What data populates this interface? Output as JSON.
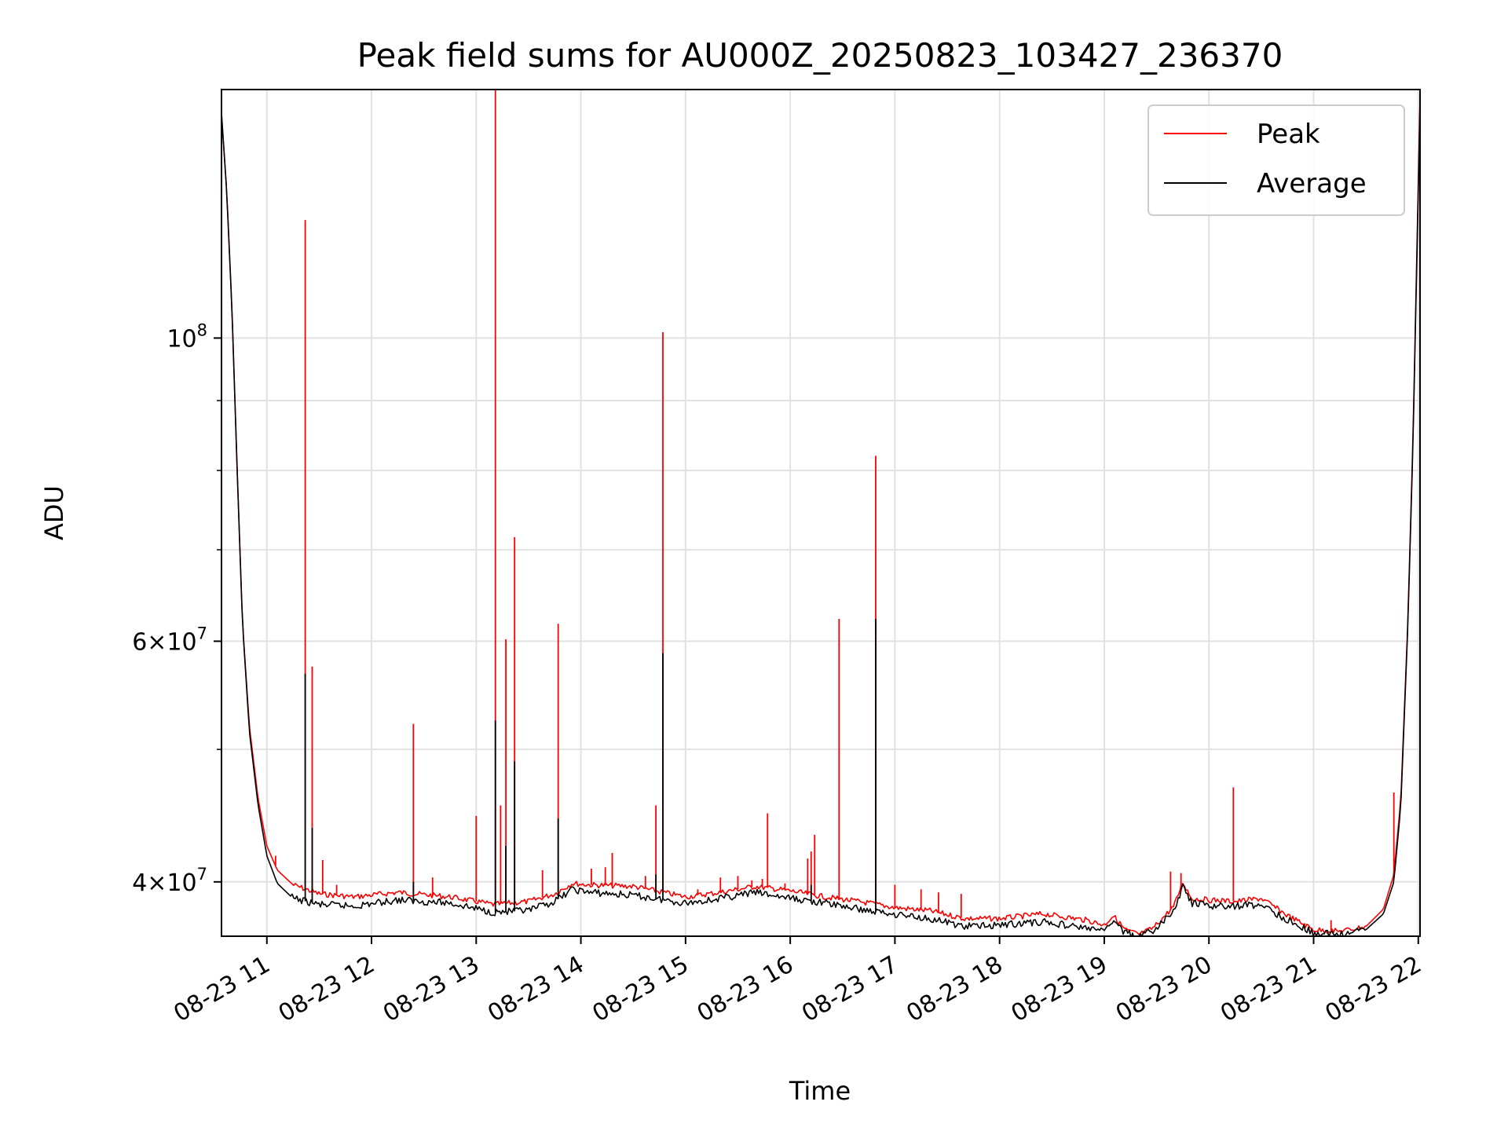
{
  "chart_data": {
    "type": "line",
    "title": "Peak field sums for AU000Z_20250823_103427_236370",
    "xlabel": "Time",
    "ylabel": "ADU",
    "y_scale": "log",
    "grid": true,
    "legend_position": "top-right",
    "x_range": [
      "2025-08-23 10:34",
      "2025-08-23 22:01"
    ],
    "ylim": [
      36500000,
      152000000
    ],
    "x_tick_labels": [
      "08-23 11",
      "08-23 12",
      "08-23 13",
      "08-23 14",
      "08-23 15",
      "08-23 16",
      "08-23 17",
      "08-23 18",
      "08-23 19",
      "08-23 20",
      "08-23 21",
      "08-23 22"
    ],
    "x_tick_times": [
      "2025-08-23 11:00",
      "2025-08-23 12:00",
      "2025-08-23 13:00",
      "2025-08-23 14:00",
      "2025-08-23 15:00",
      "2025-08-23 16:00",
      "2025-08-23 17:00",
      "2025-08-23 18:00",
      "2025-08-23 19:00",
      "2025-08-23 20:00",
      "2025-08-23 21:00",
      "2025-08-23 22:00"
    ],
    "y_major_ticks": [
      {
        "value": 40000000,
        "mantissa": "4",
        "exponent": "7"
      },
      {
        "value": 60000000,
        "mantissa": "6",
        "exponent": "7"
      },
      {
        "value": 100000000,
        "mantissa": "",
        "exponent": "8"
      }
    ],
    "y_minor_ticks": [
      50000000,
      70000000,
      80000000,
      90000000
    ],
    "series": [
      {
        "name": "Peak",
        "color": "#ff0000",
        "baseline": [
          [
            "2025-08-23 10:34",
            146000000
          ],
          [
            "2025-08-23 10:37",
            128000000
          ],
          [
            "2025-08-23 10:40",
            105000000
          ],
          [
            "2025-08-23 10:43",
            80000000
          ],
          [
            "2025-08-23 10:46",
            62000000
          ],
          [
            "2025-08-23 10:50",
            52000000
          ],
          [
            "2025-08-23 10:55",
            46000000
          ],
          [
            "2025-08-23 11:00",
            42500000
          ],
          [
            "2025-08-23 11:06",
            40800000
          ],
          [
            "2025-08-23 11:15",
            39800000
          ],
          [
            "2025-08-23 11:30",
            39200000
          ],
          [
            "2025-08-23 11:50",
            39000000
          ],
          [
            "2025-08-23 12:15",
            39300000
          ],
          [
            "2025-08-23 12:45",
            39000000
          ],
          [
            "2025-08-23 13:10",
            38500000
          ],
          [
            "2025-08-23 13:30",
            38700000
          ],
          [
            "2025-08-23 13:45",
            39200000
          ],
          [
            "2025-08-23 13:55",
            39900000
          ],
          [
            "2025-08-23 14:05",
            39800000
          ],
          [
            "2025-08-23 14:30",
            39700000
          ],
          [
            "2025-08-23 15:00",
            39000000
          ],
          [
            "2025-08-23 15:20",
            39300000
          ],
          [
            "2025-08-23 15:40",
            39700000
          ],
          [
            "2025-08-23 16:00",
            39400000
          ],
          [
            "2025-08-23 16:20",
            39000000
          ],
          [
            "2025-08-23 16:45",
            38600000
          ],
          [
            "2025-08-23 17:00",
            38300000
          ],
          [
            "2025-08-23 17:20",
            38100000
          ],
          [
            "2025-08-23 17:40",
            37600000
          ],
          [
            "2025-08-23 18:00",
            37600000
          ],
          [
            "2025-08-23 18:25",
            37900000
          ],
          [
            "2025-08-23 18:50",
            37500000
          ],
          [
            "2025-08-23 19:00",
            37200000
          ],
          [
            "2025-08-23 19:05",
            37800000
          ],
          [
            "2025-08-23 19:12",
            36900000
          ],
          [
            "2025-08-23 19:20",
            36600000
          ],
          [
            "2025-08-23 19:28",
            37000000
          ],
          [
            "2025-08-23 19:40",
            38400000
          ],
          [
            "2025-08-23 19:45",
            40000000
          ],
          [
            "2025-08-23 19:50",
            38900000
          ],
          [
            "2025-08-23 20:00",
            38800000
          ],
          [
            "2025-08-23 20:15",
            38700000
          ],
          [
            "2025-08-23 20:30",
            38900000
          ],
          [
            "2025-08-23 20:45",
            37800000
          ],
          [
            "2025-08-23 21:00",
            36900000
          ],
          [
            "2025-08-23 21:15",
            36800000
          ],
          [
            "2025-08-23 21:30",
            37100000
          ],
          [
            "2025-08-23 21:40",
            38200000
          ],
          [
            "2025-08-23 21:46",
            40500000
          ],
          [
            "2025-08-23 21:50",
            46000000
          ],
          [
            "2025-08-23 21:54",
            62000000
          ],
          [
            "2025-08-23 21:57",
            85000000
          ],
          [
            "2025-08-23 22:00",
            130000000
          ],
          [
            "2025-08-23 22:01",
            150000000
          ]
        ],
        "spikes": [
          [
            "2025-08-23 11:05",
            41800000
          ],
          [
            "2025-08-23 11:22",
            122000000
          ],
          [
            "2025-08-23 11:26",
            57500000
          ],
          [
            "2025-08-23 11:32",
            41500000
          ],
          [
            "2025-08-23 11:40",
            39800000
          ],
          [
            "2025-08-23 12:24",
            52200000
          ],
          [
            "2025-08-23 12:35",
            40300000
          ],
          [
            "2025-08-23 13:00",
            44700000
          ],
          [
            "2025-08-23 13:11",
            152000000
          ],
          [
            "2025-08-23 13:14",
            45500000
          ],
          [
            "2025-08-23 13:17",
            60200000
          ],
          [
            "2025-08-23 13:22",
            71500000
          ],
          [
            "2025-08-23 13:38",
            40800000
          ],
          [
            "2025-08-23 13:47",
            61800000
          ],
          [
            "2025-08-23 14:06",
            40900000
          ],
          [
            "2025-08-23 14:14",
            41000000
          ],
          [
            "2025-08-23 14:18",
            42000000
          ],
          [
            "2025-08-23 14:37",
            40400000
          ],
          [
            "2025-08-23 14:43",
            45500000
          ],
          [
            "2025-08-23 14:47",
            101000000
          ],
          [
            "2025-08-23 15:07",
            39500000
          ],
          [
            "2025-08-23 15:20",
            40300000
          ],
          [
            "2025-08-23 15:30",
            40400000
          ],
          [
            "2025-08-23 15:38",
            40100000
          ],
          [
            "2025-08-23 15:44",
            40200000
          ],
          [
            "2025-08-23 15:47",
            44900000
          ],
          [
            "2025-08-23 15:57",
            39900000
          ],
          [
            "2025-08-23 16:10",
            41600000
          ],
          [
            "2025-08-23 16:12",
            42100000
          ],
          [
            "2025-08-23 16:14",
            43300000
          ],
          [
            "2025-08-23 16:28",
            62300000
          ],
          [
            "2025-08-23 16:49",
            82000000
          ],
          [
            "2025-08-23 17:00",
            39800000
          ],
          [
            "2025-08-23 17:15",
            39500000
          ],
          [
            "2025-08-23 17:25",
            39300000
          ],
          [
            "2025-08-23 17:38",
            39200000
          ],
          [
            "2025-08-23 19:38",
            40700000
          ],
          [
            "2025-08-23 19:44",
            40600000
          ],
          [
            "2025-08-23 20:14",
            46900000
          ],
          [
            "2025-08-23 20:55",
            37300000
          ],
          [
            "2025-08-23 21:10",
            37500000
          ],
          [
            "2025-08-23 21:46",
            46500000
          ]
        ]
      },
      {
        "name": "Average",
        "color": "#000000",
        "baseline": [
          [
            "2025-08-23 10:34",
            146000000
          ],
          [
            "2025-08-23 10:37",
            128000000
          ],
          [
            "2025-08-23 10:40",
            105000000
          ],
          [
            "2025-08-23 10:43",
            80000000
          ],
          [
            "2025-08-23 10:46",
            62000000
          ],
          [
            "2025-08-23 10:50",
            51500000
          ],
          [
            "2025-08-23 10:55",
            45500000
          ],
          [
            "2025-08-23 11:00",
            41800000
          ],
          [
            "2025-08-23 11:06",
            39900000
          ],
          [
            "2025-08-23 11:15",
            38900000
          ],
          [
            "2025-08-23 11:30",
            38500000
          ],
          [
            "2025-08-23 11:50",
            38400000
          ],
          [
            "2025-08-23 12:15",
            38800000
          ],
          [
            "2025-08-23 12:45",
            38600000
          ],
          [
            "2025-08-23 13:10",
            38000000
          ],
          [
            "2025-08-23 13:30",
            38100000
          ],
          [
            "2025-08-23 13:45",
            38700000
          ],
          [
            "2025-08-23 13:55",
            39500000
          ],
          [
            "2025-08-23 14:05",
            39300000
          ],
          [
            "2025-08-23 14:30",
            39100000
          ],
          [
            "2025-08-23 15:00",
            38600000
          ],
          [
            "2025-08-23 15:20",
            38900000
          ],
          [
            "2025-08-23 15:40",
            39300000
          ],
          [
            "2025-08-23 16:00",
            38900000
          ],
          [
            "2025-08-23 16:20",
            38600000
          ],
          [
            "2025-08-23 16:45",
            38100000
          ],
          [
            "2025-08-23 17:00",
            37900000
          ],
          [
            "2025-08-23 17:20",
            37600000
          ],
          [
            "2025-08-23 17:40",
            37100000
          ],
          [
            "2025-08-23 18:00",
            37200000
          ],
          [
            "2025-08-23 18:25",
            37400000
          ],
          [
            "2025-08-23 18:50",
            37000000
          ],
          [
            "2025-08-23 19:00",
            36800000
          ],
          [
            "2025-08-23 19:05",
            37500000
          ],
          [
            "2025-08-23 19:12",
            36700000
          ],
          [
            "2025-08-23 19:20",
            36500000
          ],
          [
            "2025-08-23 19:28",
            36800000
          ],
          [
            "2025-08-23 19:40",
            38100000
          ],
          [
            "2025-08-23 19:45",
            39700000
          ],
          [
            "2025-08-23 19:50",
            38600000
          ],
          [
            "2025-08-23 20:00",
            38400000
          ],
          [
            "2025-08-23 20:15",
            38400000
          ],
          [
            "2025-08-23 20:30",
            38500000
          ],
          [
            "2025-08-23 20:45",
            37500000
          ],
          [
            "2025-08-23 21:00",
            36700000
          ],
          [
            "2025-08-23 21:15",
            36600000
          ],
          [
            "2025-08-23 21:30",
            36900000
          ],
          [
            "2025-08-23 21:40",
            37900000
          ],
          [
            "2025-08-23 21:46",
            40000000
          ],
          [
            "2025-08-23 21:50",
            45500000
          ],
          [
            "2025-08-23 21:54",
            61500000
          ],
          [
            "2025-08-23 21:57",
            84000000
          ],
          [
            "2025-08-23 22:00",
            128000000
          ],
          [
            "2025-08-23 22:01",
            149000000
          ]
        ],
        "spikes": [
          [
            "2025-08-23 11:22",
            56800000
          ],
          [
            "2025-08-23 11:26",
            43800000
          ],
          [
            "2025-08-23 12:24",
            40000000
          ],
          [
            "2025-08-23 13:11",
            52500000
          ],
          [
            "2025-08-23 13:17",
            42500000
          ],
          [
            "2025-08-23 13:22",
            49000000
          ],
          [
            "2025-08-23 13:47",
            44500000
          ],
          [
            "2025-08-23 14:43",
            40500000
          ],
          [
            "2025-08-23 14:47",
            58800000
          ],
          [
            "2025-08-23 16:12",
            39800000
          ],
          [
            "2025-08-23 16:49",
            62300000
          ]
        ]
      }
    ]
  }
}
